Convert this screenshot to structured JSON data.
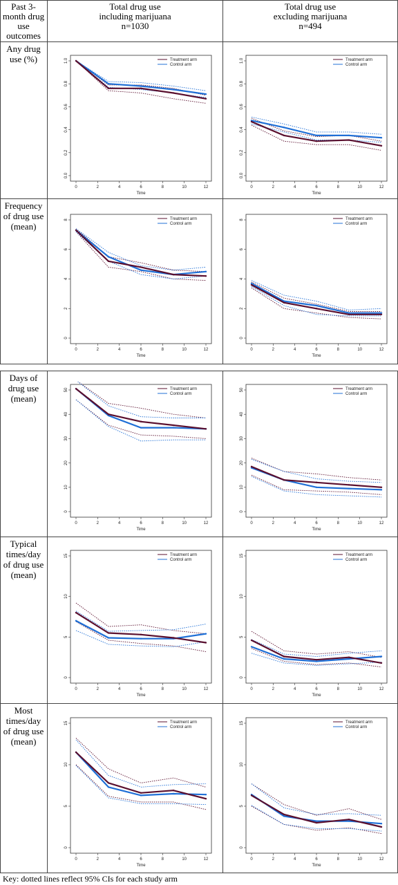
{
  "header": {
    "col0": "Past 3-month drug use outcomes",
    "col1_line1": "Total drug use",
    "col1_line2": "including marijuana",
    "col1_line3": "n=1030",
    "col2_line1": "Total drug use",
    "col2_line2": "excluding marijuana",
    "col2_line3": "n=494"
  },
  "rows": [
    {
      "label": "Any drug use (%)"
    },
    {
      "label": "Frequency of drug use (mean)"
    },
    {
      "label": "Days of drug use (mean)"
    },
    {
      "label": "Typical times/day of drug use (mean)"
    },
    {
      "label": "Most times/day of drug use (mean)"
    }
  ],
  "key": "Key: dotted lines reflect 95% CIs for each study arm",
  "colors": {
    "treatment": "#5a0f2e",
    "control": "#1f6fd6"
  },
  "chart_data": [
    {
      "type": "line",
      "row": 0,
      "col": 0,
      "xlabel": "Time",
      "x": [
        0,
        3,
        6,
        9,
        12
      ],
      "ylim": [
        0,
        1.0
      ],
      "yticks": [
        0.0,
        0.2,
        0.4,
        0.6,
        0.8,
        1.0
      ],
      "ytick_labels": [
        "0.0",
        "0.2",
        "0.4",
        "0.6",
        "0.8",
        "1.0"
      ],
      "xticks": [
        0,
        2,
        4,
        6,
        8,
        10,
        12
      ],
      "series": [
        {
          "name": "Treatment arm",
          "values": [
            1.0,
            0.76,
            0.76,
            0.72,
            0.67
          ],
          "lower": [
            1.0,
            0.74,
            0.72,
            0.67,
            0.63
          ],
          "upper": [
            1.0,
            0.79,
            0.79,
            0.76,
            0.7
          ]
        },
        {
          "name": "Control arm",
          "values": [
            1.0,
            0.8,
            0.78,
            0.75,
            0.71
          ],
          "lower": [
            1.0,
            0.77,
            0.75,
            0.72,
            0.68
          ],
          "upper": [
            1.0,
            0.82,
            0.81,
            0.78,
            0.74
          ]
        }
      ]
    },
    {
      "type": "line",
      "row": 0,
      "col": 1,
      "xlabel": "Time",
      "x": [
        0,
        3,
        6,
        9,
        12
      ],
      "ylim": [
        0,
        1.0
      ],
      "yticks": [
        0.0,
        0.2,
        0.4,
        0.6,
        0.8,
        1.0
      ],
      "ytick_labels": [
        "0.0",
        "0.2",
        "0.4",
        "0.6",
        "0.8",
        "1.0"
      ],
      "xticks": [
        0,
        2,
        4,
        6,
        8,
        10,
        12
      ],
      "series": [
        {
          "name": "Treatment arm",
          "values": [
            0.47,
            0.35,
            0.3,
            0.31,
            0.26
          ],
          "lower": [
            0.44,
            0.3,
            0.27,
            0.27,
            0.22
          ],
          "upper": [
            0.5,
            0.39,
            0.34,
            0.35,
            0.3
          ]
        },
        {
          "name": "Control arm",
          "values": [
            0.48,
            0.42,
            0.35,
            0.35,
            0.33
          ],
          "lower": [
            0.45,
            0.38,
            0.31,
            0.31,
            0.29
          ],
          "upper": [
            0.51,
            0.45,
            0.38,
            0.38,
            0.36
          ]
        }
      ]
    },
    {
      "type": "line",
      "row": 1,
      "col": 0,
      "xlabel": "Time",
      "x": [
        0,
        3,
        6,
        9,
        12
      ],
      "ylim": [
        0,
        8
      ],
      "yticks": [
        0,
        2,
        4,
        6,
        8
      ],
      "ytick_labels": [
        "0",
        "2",
        "4",
        "6",
        "8"
      ],
      "xticks": [
        0,
        2,
        4,
        6,
        8,
        10,
        12
      ],
      "series": [
        {
          "name": "Treatment arm",
          "values": [
            7.3,
            5.2,
            4.8,
            4.3,
            4.2
          ],
          "lower": [
            7.2,
            4.8,
            4.5,
            4.0,
            3.9
          ],
          "upper": [
            7.4,
            5.5,
            5.1,
            4.6,
            4.5
          ]
        },
        {
          "name": "Control arm",
          "values": [
            7.3,
            5.5,
            4.6,
            4.3,
            4.5
          ],
          "lower": [
            7.2,
            5.2,
            4.3,
            4.0,
            4.2
          ],
          "upper": [
            7.4,
            5.8,
            4.9,
            4.6,
            4.8
          ]
        }
      ]
    },
    {
      "type": "line",
      "row": 1,
      "col": 1,
      "xlabel": "Time",
      "x": [
        0,
        3,
        6,
        9,
        12
      ],
      "ylim": [
        0,
        8
      ],
      "yticks": [
        0,
        2,
        4,
        6,
        8
      ],
      "ytick_labels": [
        "0",
        "2",
        "4",
        "6",
        "8"
      ],
      "xticks": [
        0,
        2,
        4,
        6,
        8,
        10,
        12
      ],
      "series": [
        {
          "name": "Treatment arm",
          "values": [
            3.6,
            2.4,
            2.0,
            1.6,
            1.6
          ],
          "lower": [
            3.4,
            2.0,
            1.7,
            1.4,
            1.3
          ],
          "upper": [
            3.8,
            2.7,
            2.3,
            1.8,
            1.8
          ]
        },
        {
          "name": "Control arm",
          "values": [
            3.7,
            2.5,
            2.2,
            1.7,
            1.7
          ],
          "lower": [
            3.5,
            2.2,
            1.6,
            1.5,
            1.5
          ],
          "upper": [
            3.9,
            2.9,
            2.5,
            1.9,
            2.0
          ]
        }
      ]
    },
    {
      "type": "line",
      "row": 2,
      "col": 0,
      "xlabel": "Time",
      "x": [
        0,
        3,
        6,
        9,
        12
      ],
      "ylim": [
        0,
        50
      ],
      "yticks": [
        0,
        10,
        20,
        30,
        40,
        50
      ],
      "ytick_labels": [
        "0",
        "10",
        "20",
        "30",
        "40",
        "50"
      ],
      "xticks": [
        0,
        2,
        4,
        6,
        8,
        10,
        12
      ],
      "series": [
        {
          "name": "Treatment arm",
          "values": [
            50.5,
            40,
            37,
            35.5,
            34
          ],
          "lower": [
            46,
            35.5,
            31.5,
            31,
            30
          ],
          "upper": [
            54,
            44.5,
            42.5,
            40,
            38.5
          ]
        },
        {
          "name": "Control arm",
          "values": [
            50.5,
            39.5,
            34.5,
            34.5,
            34
          ],
          "lower": [
            46,
            35,
            29,
            29.5,
            29.5
          ],
          "upper": [
            54,
            43.5,
            39,
            38.5,
            38.5
          ]
        }
      ]
    },
    {
      "type": "line",
      "row": 2,
      "col": 1,
      "xlabel": "Time",
      "x": [
        0,
        3,
        6,
        9,
        12
      ],
      "ylim": [
        0,
        50
      ],
      "yticks": [
        0,
        10,
        20,
        30,
        40,
        50
      ],
      "ytick_labels": [
        "0",
        "10",
        "20",
        "30",
        "40",
        "50"
      ],
      "xticks": [
        0,
        2,
        4,
        6,
        8,
        10,
        12
      ],
      "series": [
        {
          "name": "Treatment arm",
          "values": [
            18.5,
            13,
            12,
            11,
            10
          ],
          "lower": [
            15,
            9,
            8.5,
            8,
            7
          ],
          "upper": [
            22,
            16.5,
            15.5,
            14,
            13
          ]
        },
        {
          "name": "Control arm",
          "values": [
            18,
            13,
            10,
            9.5,
            9
          ],
          "lower": [
            14.5,
            8.5,
            7,
            6.5,
            6
          ],
          "upper": [
            21.5,
            16.5,
            13.5,
            12.5,
            12
          ]
        }
      ]
    },
    {
      "type": "line",
      "row": 3,
      "col": 0,
      "xlabel": "Time",
      "x": [
        0,
        3,
        6,
        9,
        12
      ],
      "ylim": [
        0,
        15
      ],
      "yticks": [
        0,
        5,
        10,
        15
      ],
      "ytick_labels": [
        "0",
        "5",
        "10",
        "15"
      ],
      "xticks": [
        0,
        2,
        4,
        6,
        8,
        10,
        12
      ],
      "series": [
        {
          "name": "Treatment arm",
          "values": [
            8.0,
            5.5,
            5.3,
            4.9,
            4.3
          ],
          "lower": [
            6.9,
            4.6,
            4.2,
            3.9,
            3.2
          ],
          "upper": [
            9.2,
            6.3,
            6.5,
            5.8,
            5.4
          ]
        },
        {
          "name": "Control arm",
          "values": [
            7.0,
            4.9,
            4.8,
            4.8,
            5.4
          ],
          "lower": [
            5.8,
            4.1,
            3.9,
            3.8,
            4.4
          ],
          "upper": [
            8.2,
            5.7,
            5.8,
            5.9,
            6.6
          ]
        }
      ]
    },
    {
      "type": "line",
      "row": 3,
      "col": 1,
      "xlabel": "Time",
      "x": [
        0,
        3,
        6,
        9,
        12
      ],
      "ylim": [
        0,
        15
      ],
      "yticks": [
        0,
        5,
        10,
        15
      ],
      "ytick_labels": [
        "0",
        "5",
        "10",
        "15"
      ],
      "xticks": [
        0,
        2,
        4,
        6,
        8,
        10,
        12
      ],
      "series": [
        {
          "name": "Treatment arm",
          "values": [
            4.6,
            2.6,
            2.2,
            2.5,
            1.8
          ],
          "lower": [
            3.6,
            2.0,
            1.6,
            1.8,
            1.3
          ],
          "upper": [
            5.7,
            3.3,
            2.9,
            3.2,
            2.5
          ]
        },
        {
          "name": "Control arm",
          "values": [
            3.8,
            2.3,
            2.0,
            2.3,
            2.6
          ],
          "lower": [
            3.0,
            1.8,
            1.5,
            1.7,
            1.9
          ],
          "upper": [
            4.7,
            2.9,
            2.6,
            3.0,
            3.3
          ]
        }
      ]
    },
    {
      "type": "line",
      "row": 4,
      "col": 0,
      "xlabel": "Time",
      "x": [
        0,
        3,
        6,
        9,
        12
      ],
      "ylim": [
        0,
        15
      ],
      "yticks": [
        0,
        5,
        10,
        15
      ],
      "ytick_labels": [
        "0",
        "5",
        "10",
        "15"
      ],
      "xticks": [
        0,
        2,
        4,
        6,
        8,
        10,
        12
      ],
      "series": [
        {
          "name": "Treatment arm",
          "values": [
            11.5,
            7.8,
            6.6,
            6.9,
            5.9
          ],
          "lower": [
            10.0,
            6.2,
            5.5,
            5.5,
            4.6
          ],
          "upper": [
            13.2,
            9.5,
            7.8,
            8.4,
            7.3
          ]
        },
        {
          "name": "Control arm",
          "values": [
            11.5,
            7.3,
            6.3,
            6.5,
            6.4
          ],
          "lower": [
            9.9,
            6.0,
            5.3,
            5.3,
            5.2
          ],
          "upper": [
            13.0,
            8.7,
            7.3,
            7.6,
            7.7
          ]
        }
      ]
    },
    {
      "type": "line",
      "row": 4,
      "col": 1,
      "xlabel": "Time",
      "x": [
        0,
        3,
        6,
        9,
        12
      ],
      "ylim": [
        0,
        15
      ],
      "yticks": [
        0,
        5,
        10,
        15
      ],
      "ytick_labels": [
        "0",
        "5",
        "10",
        "15"
      ],
      "xticks": [
        0,
        2,
        4,
        6,
        8,
        10,
        12
      ],
      "series": [
        {
          "name": "Treatment arm",
          "values": [
            6.3,
            4.0,
            3.0,
            3.4,
            2.5
          ],
          "lower": [
            5.0,
            2.8,
            2.1,
            2.4,
            1.7
          ],
          "upper": [
            7.7,
            5.2,
            3.9,
            4.7,
            3.4
          ]
        },
        {
          "name": "Control arm",
          "values": [
            6.4,
            3.8,
            3.2,
            3.2,
            2.9
          ],
          "lower": [
            5.1,
            2.8,
            2.3,
            2.3,
            2.0
          ],
          "upper": [
            7.7,
            4.8,
            4.0,
            4.1,
            3.9
          ]
        }
      ]
    }
  ]
}
